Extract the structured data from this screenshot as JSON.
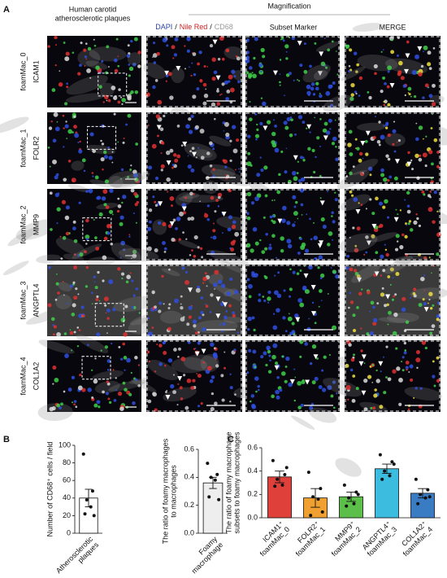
{
  "panel_a": {
    "label": "A",
    "plaque_header": [
      "Human carotid",
      "atherosclerotic plaques"
    ],
    "magnification": "Magnification",
    "channels": {
      "dapi": "DAPI",
      "sep1": "/",
      "nile_red": "Nile Red",
      "sep2": "/",
      "cd68": "CD68"
    },
    "subset_marker": "Subset Marker",
    "merge": "MERGE",
    "rows": [
      {
        "subset": "foamMac_0",
        "marker": "ICAM1"
      },
      {
        "subset": "foamMac_1",
        "marker": "FOLR2"
      },
      {
        "subset": "foamMac_2",
        "marker": "MMP9"
      },
      {
        "subset": "foamMac_3",
        "marker": "ANGPTL4"
      },
      {
        "subset": "foamMac_4",
        "marker": "COL1A2"
      }
    ]
  },
  "panel_b_label": "B",
  "panel_c_label": "C",
  "chart_data": [
    {
      "type": "bar",
      "ylabel": [
        "Number of CD68⁺ cells / field"
      ],
      "categories": [
        [
          "Atherosclerotic",
          "plaques"
        ]
      ],
      "values": [
        40
      ],
      "errors": [
        10
      ],
      "points": [
        [
          90,
          48,
          38,
          30,
          22,
          20
        ]
      ],
      "color": "#ffffff",
      "ylim": [
        0,
        100
      ],
      "yticks": [
        0,
        20,
        40,
        60,
        80,
        100
      ]
    },
    {
      "type": "bar",
      "ylabel": [
        "The ratio of foamy macrophages",
        "to macrophages"
      ],
      "categories": [
        [
          "Foamy",
          "macrophage"
        ]
      ],
      "values": [
        0.36
      ],
      "errors": [
        0.04
      ],
      "points": [
        [
          0.5,
          0.42,
          0.4,
          0.38,
          0.26,
          0.24
        ]
      ],
      "color": "#eeeeee",
      "ylim": [
        0,
        0.6
      ],
      "yticks": [
        {
          "value": 0,
          "label": "0.0"
        },
        0.2,
        0.4,
        0.6
      ]
    },
    {
      "type": "bar",
      "ylabel": [
        "The ratio of foamy macrophage",
        "subsets to foamy macrophages"
      ],
      "categories": [
        [
          "ICAM1⁺",
          "foamMac_0"
        ],
        [
          "FOLR2⁺",
          "foamMac_1"
        ],
        [
          "MMP9⁺",
          "foamMac_2"
        ],
        [
          "ANGPTL4⁺",
          "foamMac_3"
        ],
        [
          "COL1A2⁺",
          "foamMac_4"
        ]
      ],
      "values": [
        0.35,
        0.17,
        0.18,
        0.42,
        0.21
      ],
      "errors": [
        0.05,
        0.08,
        0.04,
        0.04,
        0.04
      ],
      "points": [
        [
          0.49,
          0.37,
          0.33,
          0.28,
          0.27,
          0.43
        ],
        [
          0.39,
          0.25,
          0.18,
          0.16,
          0.02,
          0.05
        ],
        [
          0.28,
          0.22,
          0.17,
          0.12,
          0.1,
          0.2
        ],
        [
          0.54,
          0.48,
          0.4,
          0.36,
          0.33,
          0.46
        ],
        [
          0.33,
          0.24,
          0.2,
          0.17,
          0.12,
          0.18
        ]
      ],
      "colors": [
        "#e0403a",
        "#f0a030",
        "#5cbf4a",
        "#3cbde0",
        "#3a7cc4"
      ],
      "ylim": [
        0,
        0.6
      ],
      "yticks": [
        {
          "value": 0,
          "label": "0.0"
        },
        0.2,
        0.4,
        0.6
      ]
    }
  ]
}
